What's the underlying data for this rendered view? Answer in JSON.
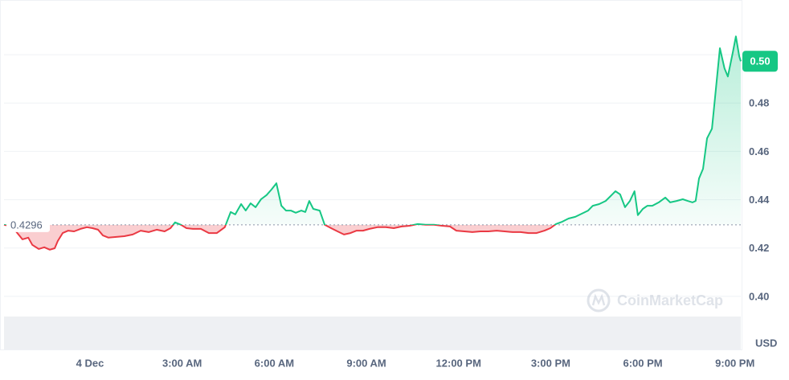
{
  "chart_data": {
    "type": "line",
    "baseline": 0.4296,
    "currency": "USD",
    "watermark": "CoinMarketCap",
    "current_price_label": "0.50",
    "up_color": "#16c784",
    "down_color": "#ea3943",
    "grid": true,
    "xlim": [
      -2.8,
      21.19
    ],
    "ylim": [
      0.378,
      0.52
    ],
    "xticks": [
      {
        "value": 0,
        "label": "4 Dec"
      },
      {
        "value": 3,
        "label": "3:00 AM"
      },
      {
        "value": 6,
        "label": "6:00 AM"
      },
      {
        "value": 9,
        "label": "9:00 AM"
      },
      {
        "value": 12,
        "label": "12:00 PM"
      },
      {
        "value": 15,
        "label": "3:00 PM"
      },
      {
        "value": 18,
        "label": "6:00 PM"
      },
      {
        "value": 21,
        "label": "9:00 PM"
      }
    ],
    "yticks": [
      {
        "value": 0.4,
        "label": "0.40"
      },
      0.42,
      0.44,
      0.46,
      0.48,
      {
        "value": 0.5,
        "label": "0.50"
      }
    ],
    "x": [
      -2.8,
      -2.54,
      -2.2,
      -2.01,
      -1.88,
      -1.67,
      -1.49,
      -1.31,
      -1.15,
      -1.05,
      -0.89,
      -0.71,
      -0.52,
      -0.31,
      -0.1,
      0.08,
      0.26,
      0.42,
      0.6,
      0.86,
      1.12,
      1.39,
      1.65,
      1.91,
      2.17,
      2.43,
      2.62,
      2.77,
      2.96,
      3.14,
      3.35,
      3.61,
      3.87,
      4.13,
      4.39,
      4.58,
      4.73,
      4.92,
      5.07,
      5.23,
      5.39,
      5.57,
      5.75,
      5.91,
      6.07,
      6.23,
      6.38,
      6.54,
      6.7,
      6.88,
      7.01,
      7.14,
      7.27,
      7.48,
      7.64,
      7.85,
      8.06,
      8.27,
      8.48,
      8.68,
      8.89,
      9.1,
      9.36,
      9.63,
      9.89,
      10.15,
      10.41,
      10.67,
      10.93,
      11.2,
      11.46,
      11.72,
      11.93,
      12.19,
      12.45,
      12.71,
      12.97,
      13.24,
      13.5,
      13.76,
      14.02,
      14.28,
      14.54,
      14.8,
      14.99,
      15.17,
      15.38,
      15.58,
      15.8,
      16.01,
      16.22,
      16.37,
      16.58,
      16.79,
      16.95,
      17.11,
      17.26,
      17.42,
      17.58,
      17.73,
      17.84,
      18.0,
      18.15,
      18.31,
      18.52,
      18.73,
      18.89,
      19.1,
      19.3,
      19.46,
      19.62,
      19.72,
      19.83,
      19.96,
      20.09,
      20.25,
      20.35,
      20.51,
      20.66,
      20.77,
      20.93,
      21.03,
      21.14,
      21.19
    ],
    "values": [
      0.4296,
      0.4289,
      0.4236,
      0.4243,
      0.4213,
      0.4196,
      0.4203,
      0.4193,
      0.4199,
      0.4229,
      0.4262,
      0.4272,
      0.4269,
      0.4279,
      0.4286,
      0.4282,
      0.4276,
      0.4252,
      0.4243,
      0.4246,
      0.4249,
      0.4256,
      0.4272,
      0.4266,
      0.4276,
      0.4269,
      0.4282,
      0.4306,
      0.4296,
      0.4282,
      0.4279,
      0.4279,
      0.4262,
      0.4262,
      0.4286,
      0.4349,
      0.4339,
      0.4382,
      0.4355,
      0.4385,
      0.4369,
      0.4402,
      0.4419,
      0.4442,
      0.4468,
      0.4375,
      0.4355,
      0.4355,
      0.4346,
      0.4355,
      0.4349,
      0.4395,
      0.4362,
      0.4355,
      0.4296,
      0.4282,
      0.4269,
      0.4256,
      0.4262,
      0.4272,
      0.4272,
      0.4279,
      0.4286,
      0.4286,
      0.4282,
      0.4289,
      0.4292,
      0.4299,
      0.4296,
      0.4296,
      0.4292,
      0.4289,
      0.4272,
      0.4269,
      0.4266,
      0.4269,
      0.4269,
      0.4272,
      0.4269,
      0.4266,
      0.4266,
      0.4262,
      0.4262,
      0.4272,
      0.4282,
      0.4299,
      0.4309,
      0.4322,
      0.4329,
      0.4342,
      0.4355,
      0.4375,
      0.4382,
      0.4395,
      0.4415,
      0.4435,
      0.4422,
      0.4369,
      0.4395,
      0.4435,
      0.4336,
      0.4362,
      0.4375,
      0.4375,
      0.4389,
      0.4409,
      0.4389,
      0.4395,
      0.4402,
      0.4395,
      0.4389,
      0.4395,
      0.4488,
      0.4528,
      0.4654,
      0.4694,
      0.4821,
      0.5027,
      0.4944,
      0.491,
      0.501,
      0.5076,
      0.4993,
      0.4973
    ]
  }
}
